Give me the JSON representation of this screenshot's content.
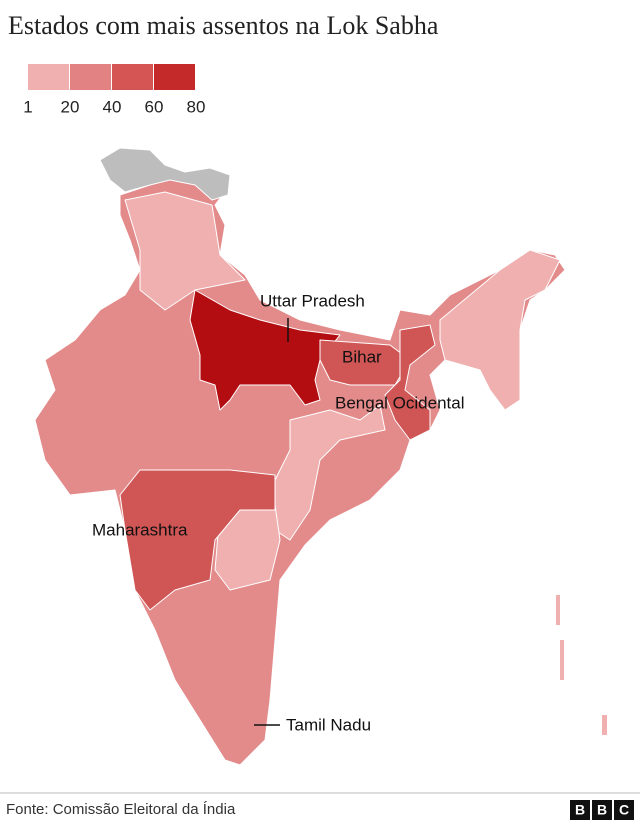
{
  "header": {
    "title": "Estados com mais assentos na Lok Sabha"
  },
  "legend": {
    "colors": [
      "#f0b0b0",
      "#e38282",
      "#d55555",
      "#c42a2a"
    ],
    "ticks": [
      1,
      20,
      40,
      60,
      80
    ]
  },
  "labels": [
    "Uttar Pradesh",
    "Bihar",
    "Bengal Ocidental",
    "Maharashtra",
    "Tamil Nadu"
  ],
  "footer": {
    "source": "Fonte: Comissão Eleitoral da Índia",
    "logo": [
      "B",
      "B",
      "C"
    ]
  }
}
